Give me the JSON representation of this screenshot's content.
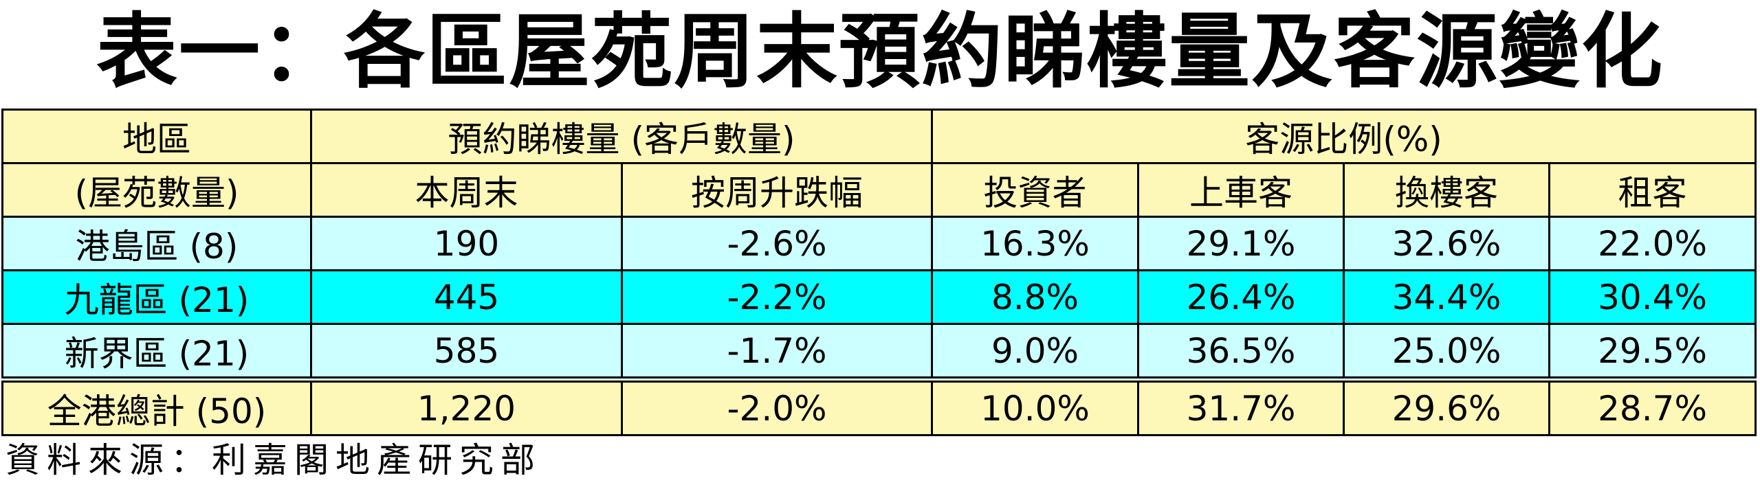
{
  "title": "表一：各區屋苑周末預約睇樓量及客源變化",
  "table": {
    "header_top": [
      "地區",
      "預約睇樓量 (客戶數量)",
      "客源比例(%)"
    ],
    "header_sub": [
      "(屋苑數量)",
      "本周末",
      "按周升跌幅",
      "投資者",
      "上車客",
      "換樓客",
      "租客"
    ],
    "rows": [
      [
        "港島區 (8)",
        "190",
        "-2.6%",
        "16.3%",
        "29.1%",
        "32.6%",
        "22.0%"
      ],
      [
        "九龍區 (21)",
        "445",
        "-2.2%",
        "8.8%",
        "26.4%",
        "34.4%",
        "30.4%"
      ],
      [
        "新界區 (21)",
        "585",
        "-1.7%",
        "9.0%",
        "36.5%",
        "25.0%",
        "29.5%"
      ],
      [
        "全港總計 (50)",
        "1,220",
        "-2.0%",
        "10.0%",
        "31.7%",
        "29.6%",
        "28.7%"
      ]
    ]
  },
  "source": "資料來源：利嘉閣地產研究部"
}
